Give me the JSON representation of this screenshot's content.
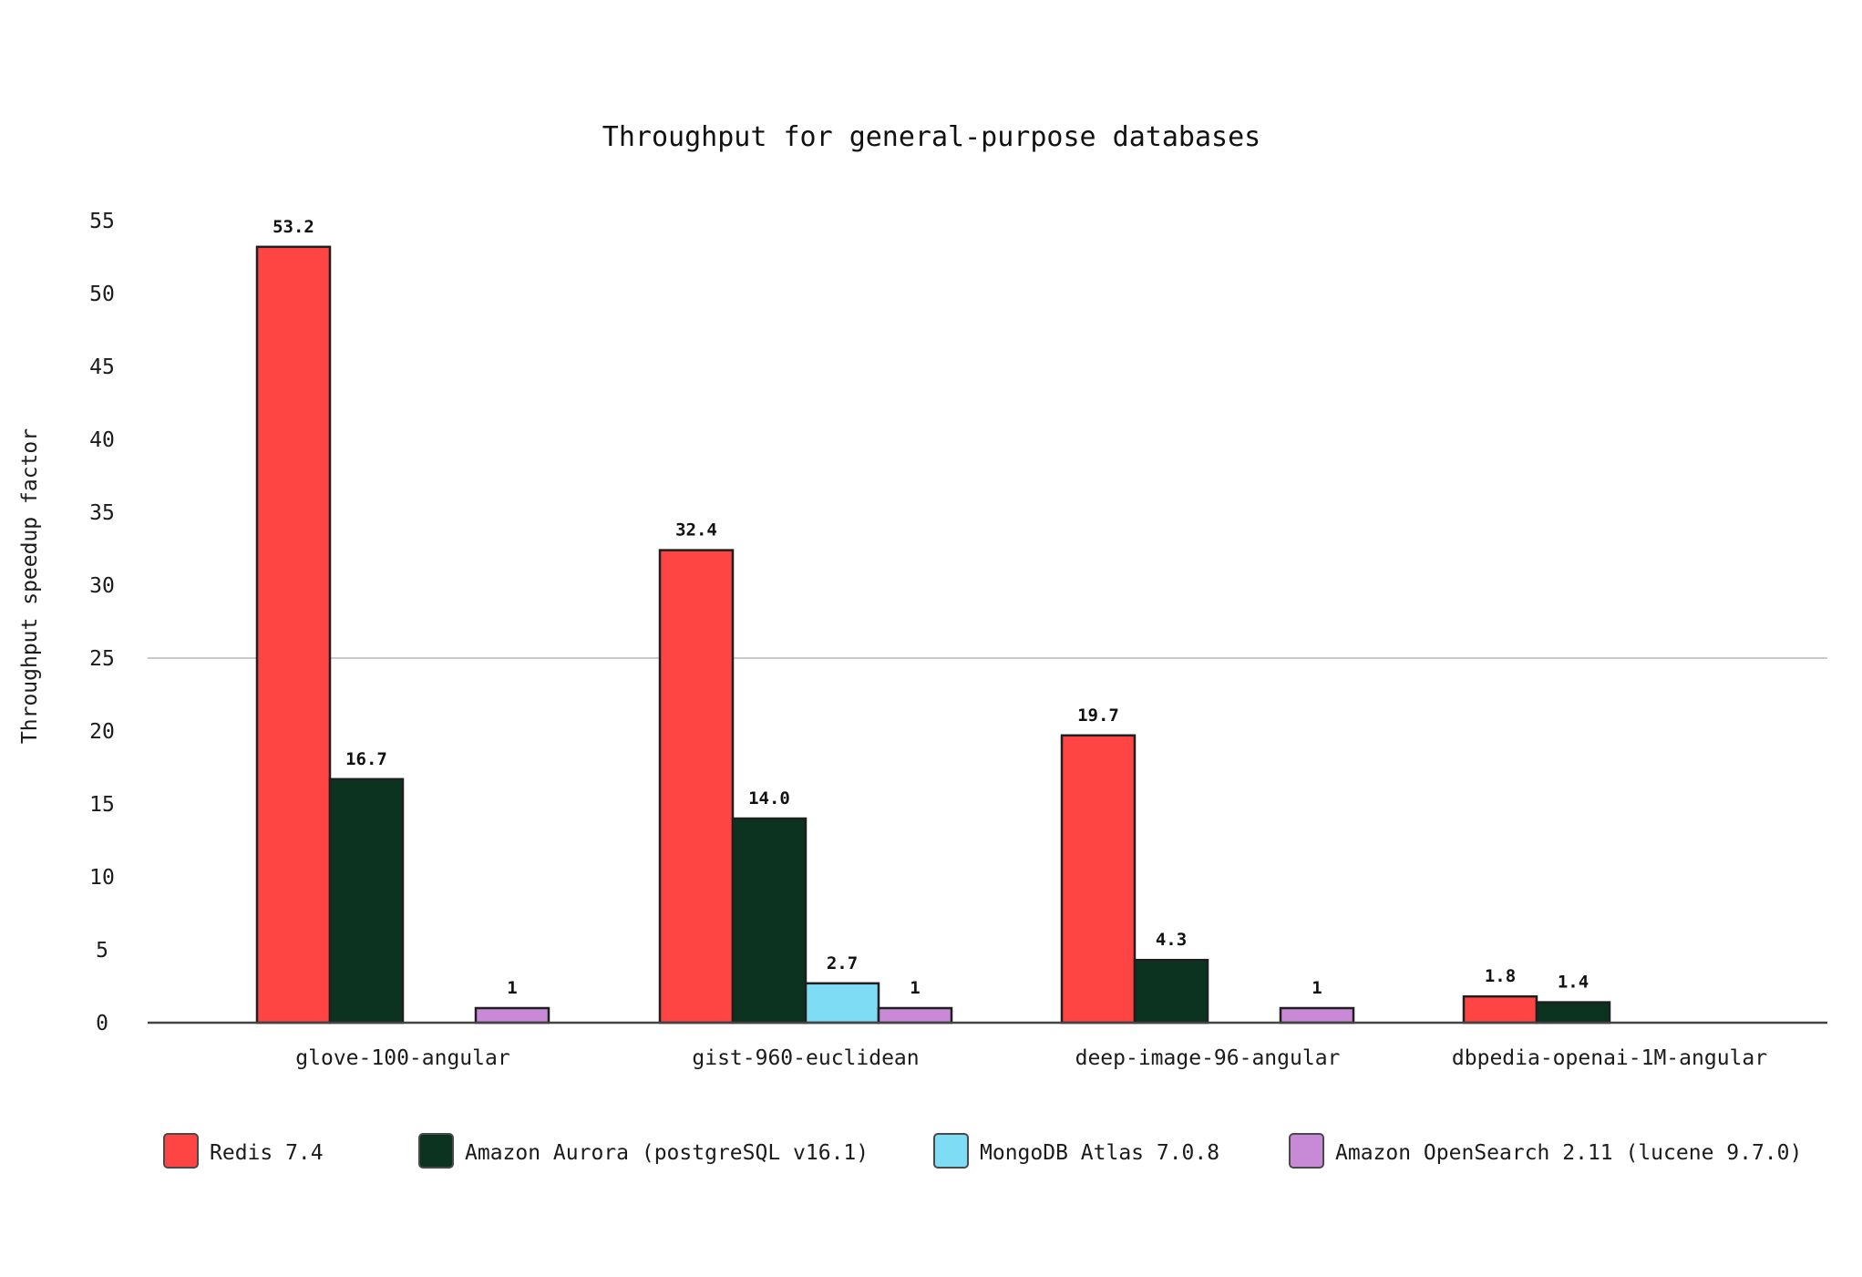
{
  "chart_data": {
    "type": "bar",
    "title": "Throughput for general-purpose databases",
    "xlabel": "",
    "ylabel": "Throughput speedup factor",
    "ylim": [
      0,
      55
    ],
    "yticks": [
      0,
      5,
      10,
      15,
      20,
      25,
      30,
      35,
      40,
      45,
      50,
      55
    ],
    "grid": "single horizontal line at 25",
    "legend_position": "bottom",
    "categories": [
      "glove-100-angular",
      "gist-960-euclidean",
      "deep-image-96-angular",
      "dbpedia-openai-1M-angular"
    ],
    "series": [
      {
        "name": "Redis 7.4",
        "color": "#ff4444",
        "values": [
          53.2,
          32.4,
          19.7,
          1.8
        ],
        "labels": [
          "53.2",
          "32.4",
          "19.7",
          "1.8"
        ]
      },
      {
        "name": "Amazon Aurora (postgreSQL v16.1)",
        "color": "#0b3320",
        "values": [
          16.7,
          14.0,
          4.3,
          1.4
        ],
        "labels": [
          "16.7",
          "14.0",
          "4.3",
          "1.4"
        ]
      },
      {
        "name": "MongoDB Atlas 7.0.8",
        "color": "#7fdcf5",
        "values": [
          null,
          2.7,
          null,
          null
        ],
        "labels": [
          null,
          "2.7",
          null,
          null
        ]
      },
      {
        "name": "Amazon OpenSearch 2.11 (lucene 9.7.0)",
        "color": "#c88ad6",
        "values": [
          1,
          1,
          1,
          null
        ],
        "labels": [
          "1",
          "1",
          "1",
          null
        ]
      }
    ]
  }
}
